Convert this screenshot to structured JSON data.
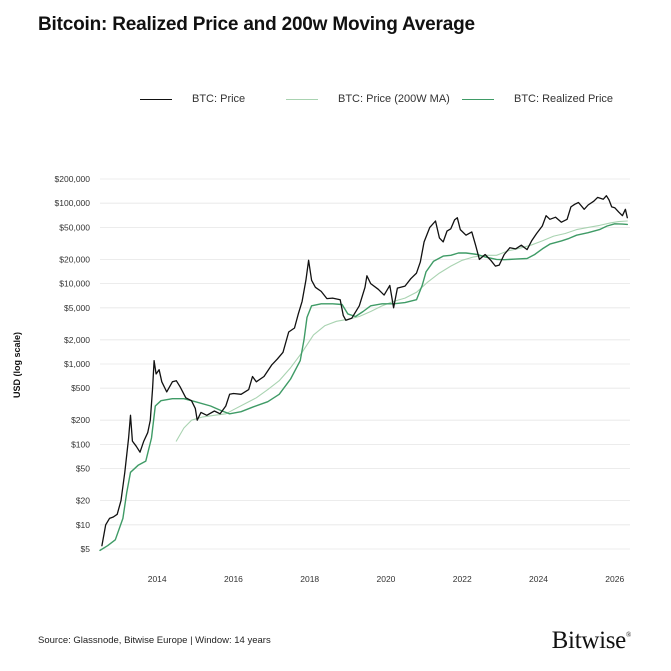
{
  "title": "Bitcoin: Realized Price and 200w Moving Average",
  "source": "Source: Glassnode, Bitwise Europe | Window: 14 years",
  "brand": "Bitwise",
  "brand_mark": "®",
  "colors": {
    "price": "#111111",
    "ma200": "#a9d3b1",
    "realized": "#3f9b66",
    "grid": "#e6e6e6",
    "text": "#333333"
  },
  "chart_data": {
    "type": "line",
    "title": "Bitcoin: Realized Price and 200w Moving Average",
    "ylabel": "USD (log scale)",
    "yscale": "log",
    "ylim": [
      4,
      300000
    ],
    "xlim": [
      2012.5,
      2026.4
    ],
    "legend_position": "top",
    "grid": true,
    "yticks": [
      {
        "v": 5,
        "label": "$5"
      },
      {
        "v": 10,
        "label": "$10"
      },
      {
        "v": 20,
        "label": "$20"
      },
      {
        "v": 50,
        "label": "$50"
      },
      {
        "v": 100,
        "label": "$100"
      },
      {
        "v": 200,
        "label": "$200"
      },
      {
        "v": 500,
        "label": "$500"
      },
      {
        "v": 1000,
        "label": "$1,000"
      },
      {
        "v": 2000,
        "label": "$2,000"
      },
      {
        "v": 5000,
        "label": "$5,000"
      },
      {
        "v": 10000,
        "label": "$10,000"
      },
      {
        "v": 20000,
        "label": "$20,000"
      },
      {
        "v": 50000,
        "label": "$50,000"
      },
      {
        "v": 100000,
        "label": "$100,000"
      },
      {
        "v": 200000,
        "label": "$200,000"
      }
    ],
    "xticks": [
      {
        "v": 2014,
        "label": "2014"
      },
      {
        "v": 2016,
        "label": "2016"
      },
      {
        "v": 2018,
        "label": "2018"
      },
      {
        "v": 2020,
        "label": "2020"
      },
      {
        "v": 2022,
        "label": "2022"
      },
      {
        "v": 2024,
        "label": "2024"
      },
      {
        "v": 2026,
        "label": "2026"
      }
    ],
    "series": [
      {
        "name": "BTC: Price",
        "key": "price",
        "points": [
          [
            2012.55,
            5.5
          ],
          [
            2012.65,
            10
          ],
          [
            2012.75,
            12
          ],
          [
            2012.85,
            12.5
          ],
          [
            2012.95,
            13.5
          ],
          [
            2013.05,
            20
          ],
          [
            2013.15,
            45
          ],
          [
            2013.25,
            120
          ],
          [
            2013.3,
            230
          ],
          [
            2013.35,
            110
          ],
          [
            2013.45,
            95
          ],
          [
            2013.55,
            80
          ],
          [
            2013.65,
            110
          ],
          [
            2013.75,
            140
          ],
          [
            2013.82,
            200
          ],
          [
            2013.88,
            500
          ],
          [
            2013.92,
            1100
          ],
          [
            2013.97,
            750
          ],
          [
            2014.05,
            850
          ],
          [
            2014.12,
            600
          ],
          [
            2014.25,
            450
          ],
          [
            2014.4,
            600
          ],
          [
            2014.5,
            620
          ],
          [
            2014.6,
            520
          ],
          [
            2014.75,
            380
          ],
          [
            2014.9,
            350
          ],
          [
            2015.0,
            280
          ],
          [
            2015.05,
            200
          ],
          [
            2015.15,
            250
          ],
          [
            2015.3,
            230
          ],
          [
            2015.5,
            260
          ],
          [
            2015.65,
            240
          ],
          [
            2015.8,
            300
          ],
          [
            2015.9,
            420
          ],
          [
            2016.0,
            430
          ],
          [
            2016.2,
            420
          ],
          [
            2016.4,
            480
          ],
          [
            2016.5,
            700
          ],
          [
            2016.6,
            600
          ],
          [
            2016.8,
            700
          ],
          [
            2017.0,
            970
          ],
          [
            2017.15,
            1150
          ],
          [
            2017.3,
            1400
          ],
          [
            2017.45,
            2500
          ],
          [
            2017.6,
            2800
          ],
          [
            2017.7,
            4200
          ],
          [
            2017.8,
            6000
          ],
          [
            2017.9,
            11000
          ],
          [
            2017.97,
            19500
          ],
          [
            2018.05,
            11000
          ],
          [
            2018.15,
            9000
          ],
          [
            2018.3,
            8000
          ],
          [
            2018.45,
            6500
          ],
          [
            2018.6,
            6600
          ],
          [
            2018.8,
            6300
          ],
          [
            2018.88,
            4000
          ],
          [
            2018.95,
            3500
          ],
          [
            2019.1,
            3700
          ],
          [
            2019.3,
            5300
          ],
          [
            2019.45,
            9000
          ],
          [
            2019.5,
            12500
          ],
          [
            2019.6,
            10000
          ],
          [
            2019.8,
            8500
          ],
          [
            2019.95,
            7200
          ],
          [
            2020.1,
            9500
          ],
          [
            2020.2,
            5000
          ],
          [
            2020.3,
            8800
          ],
          [
            2020.5,
            9300
          ],
          [
            2020.65,
            11500
          ],
          [
            2020.8,
            13500
          ],
          [
            2020.9,
            18500
          ],
          [
            2021.0,
            33000
          ],
          [
            2021.15,
            50000
          ],
          [
            2021.3,
            60000
          ],
          [
            2021.4,
            37000
          ],
          [
            2021.5,
            33000
          ],
          [
            2021.6,
            45000
          ],
          [
            2021.7,
            48000
          ],
          [
            2021.8,
            62000
          ],
          [
            2021.87,
            66000
          ],
          [
            2021.95,
            47000
          ],
          [
            2022.1,
            40000
          ],
          [
            2022.25,
            44000
          ],
          [
            2022.35,
            30000
          ],
          [
            2022.45,
            20000
          ],
          [
            2022.6,
            23000
          ],
          [
            2022.75,
            19500
          ],
          [
            2022.87,
            16500
          ],
          [
            2022.97,
            17000
          ],
          [
            2023.1,
            23000
          ],
          [
            2023.25,
            28000
          ],
          [
            2023.4,
            27000
          ],
          [
            2023.55,
            30000
          ],
          [
            2023.7,
            26500
          ],
          [
            2023.82,
            34000
          ],
          [
            2023.95,
            42000
          ],
          [
            2024.1,
            52000
          ],
          [
            2024.2,
            70000
          ],
          [
            2024.3,
            63000
          ],
          [
            2024.45,
            67000
          ],
          [
            2024.6,
            58000
          ],
          [
            2024.75,
            63000
          ],
          [
            2024.85,
            90000
          ],
          [
            2024.95,
            97000
          ],
          [
            2025.05,
            102000
          ],
          [
            2025.2,
            84000
          ],
          [
            2025.3,
            95000
          ],
          [
            2025.45,
            106000
          ],
          [
            2025.55,
            118000
          ],
          [
            2025.7,
            112000
          ],
          [
            2025.78,
            124000
          ],
          [
            2025.85,
            110000
          ],
          [
            2025.92,
            90000
          ],
          [
            2026.0,
            88000
          ],
          [
            2026.1,
            78000
          ],
          [
            2026.2,
            70000
          ],
          [
            2026.28,
            84000
          ],
          [
            2026.33,
            66000
          ]
        ]
      },
      {
        "name": "BTC: Price (200W MA)",
        "key": "ma200",
        "points": [
          [
            2014.5,
            110
          ],
          [
            2014.7,
            160
          ],
          [
            2014.9,
            200
          ],
          [
            2015.2,
            220
          ],
          [
            2015.5,
            230
          ],
          [
            2015.8,
            240
          ],
          [
            2016.0,
            270
          ],
          [
            2016.3,
            320
          ],
          [
            2016.6,
            380
          ],
          [
            2016.9,
            480
          ],
          [
            2017.2,
            620
          ],
          [
            2017.5,
            900
          ],
          [
            2017.8,
            1400
          ],
          [
            2018.1,
            2300
          ],
          [
            2018.4,
            3000
          ],
          [
            2018.7,
            3400
          ],
          [
            2019.0,
            3600
          ],
          [
            2019.3,
            3900
          ],
          [
            2019.6,
            4500
          ],
          [
            2019.9,
            5300
          ],
          [
            2020.2,
            6000
          ],
          [
            2020.5,
            6600
          ],
          [
            2020.8,
            7800
          ],
          [
            2021.1,
            10500
          ],
          [
            2021.4,
            13500
          ],
          [
            2021.7,
            16500
          ],
          [
            2022.0,
            19500
          ],
          [
            2022.3,
            21500
          ],
          [
            2022.6,
            22500
          ],
          [
            2022.9,
            22500
          ],
          [
            2023.2,
            25500
          ],
          [
            2023.5,
            27500
          ],
          [
            2023.8,
            30000
          ],
          [
            2024.1,
            34000
          ],
          [
            2024.4,
            39000
          ],
          [
            2024.7,
            42000
          ],
          [
            2025.0,
            47000
          ],
          [
            2025.3,
            50000
          ],
          [
            2025.6,
            53000
          ],
          [
            2025.9,
            57000
          ],
          [
            2026.1,
            59000
          ],
          [
            2026.33,
            60000
          ]
        ]
      },
      {
        "name": "BTC: Realized Price",
        "key": "realized",
        "points": [
          [
            2012.5,
            4.8
          ],
          [
            2012.7,
            5.5
          ],
          [
            2012.9,
            6.5
          ],
          [
            2013.1,
            12
          ],
          [
            2013.2,
            25
          ],
          [
            2013.3,
            45
          ],
          [
            2013.5,
            55
          ],
          [
            2013.7,
            62
          ],
          [
            2013.85,
            120
          ],
          [
            2013.95,
            300
          ],
          [
            2014.1,
            350
          ],
          [
            2014.4,
            370
          ],
          [
            2014.7,
            370
          ],
          [
            2015.0,
            340
          ],
          [
            2015.4,
            300
          ],
          [
            2015.7,
            260
          ],
          [
            2015.9,
            240
          ],
          [
            2016.2,
            255
          ],
          [
            2016.5,
            290
          ],
          [
            2016.9,
            340
          ],
          [
            2017.2,
            420
          ],
          [
            2017.5,
            650
          ],
          [
            2017.75,
            1100
          ],
          [
            2017.85,
            2000
          ],
          [
            2017.93,
            3800
          ],
          [
            2018.05,
            5300
          ],
          [
            2018.3,
            5600
          ],
          [
            2018.6,
            5600
          ],
          [
            2018.85,
            5500
          ],
          [
            2019.0,
            4200
          ],
          [
            2019.2,
            3900
          ],
          [
            2019.4,
            4500
          ],
          [
            2019.6,
            5300
          ],
          [
            2019.9,
            5600
          ],
          [
            2020.2,
            5600
          ],
          [
            2020.5,
            5800
          ],
          [
            2020.8,
            6300
          ],
          [
            2020.95,
            9500
          ],
          [
            2021.05,
            14000
          ],
          [
            2021.25,
            19000
          ],
          [
            2021.5,
            22000
          ],
          [
            2021.7,
            22500
          ],
          [
            2021.9,
            24000
          ],
          [
            2022.1,
            24000
          ],
          [
            2022.4,
            23000
          ],
          [
            2022.6,
            21500
          ],
          [
            2022.9,
            20000
          ],
          [
            2023.1,
            19800
          ],
          [
            2023.4,
            20200
          ],
          [
            2023.7,
            20500
          ],
          [
            2023.9,
            23000
          ],
          [
            2024.1,
            27000
          ],
          [
            2024.3,
            31000
          ],
          [
            2024.6,
            34000
          ],
          [
            2024.8,
            36500
          ],
          [
            2025.0,
            40000
          ],
          [
            2025.3,
            43000
          ],
          [
            2025.6,
            47000
          ],
          [
            2025.8,
            52000
          ],
          [
            2026.0,
            55500
          ],
          [
            2026.2,
            55000
          ],
          [
            2026.33,
            54500
          ]
        ]
      }
    ]
  }
}
